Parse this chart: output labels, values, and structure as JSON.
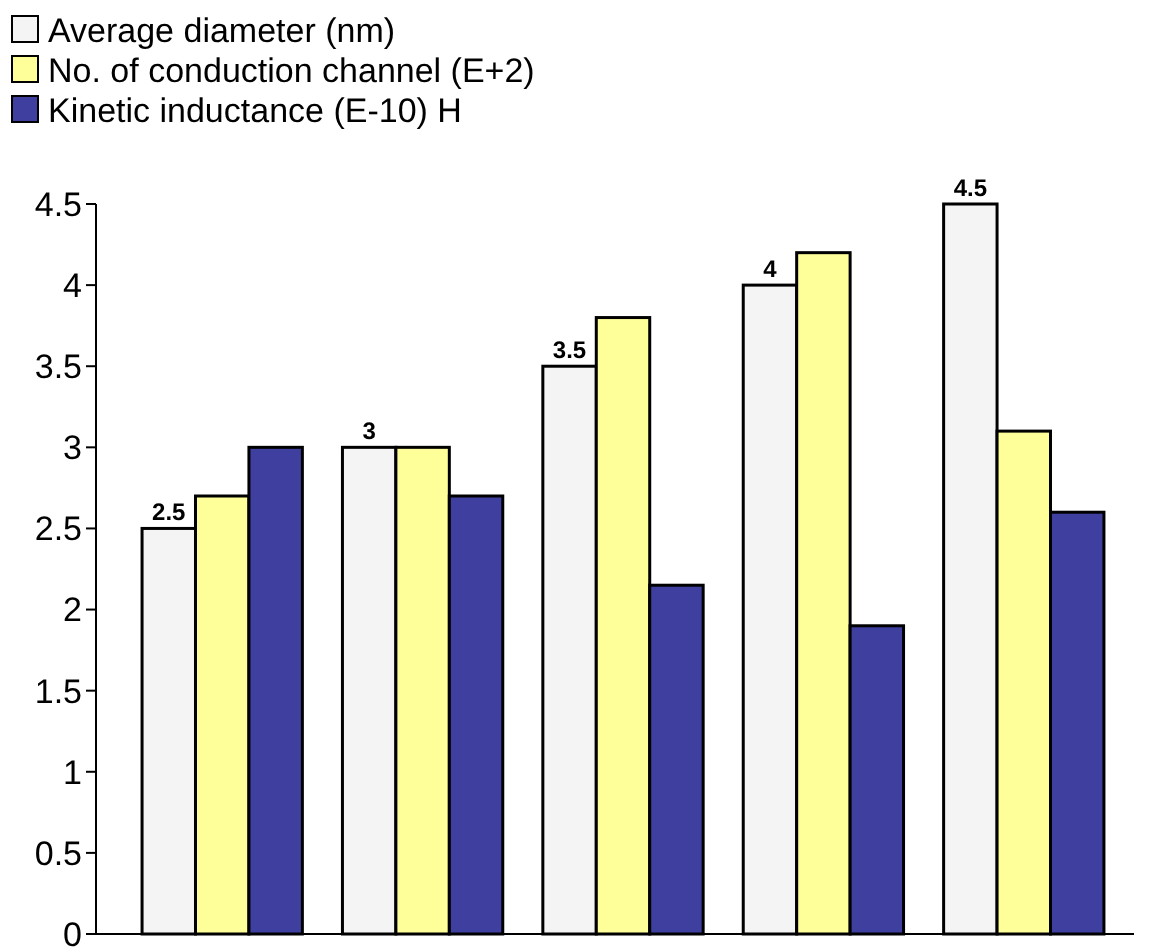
{
  "chart_data": {
    "type": "bar",
    "categories": [
      null,
      null,
      null,
      null,
      null
    ],
    "series": [
      {
        "name": "Average diameter (nm)",
        "color": "#f4f4f4",
        "values": [
          2.5,
          3,
          3.5,
          4,
          4.5
        ],
        "value_labels": [
          "2.5",
          "3",
          "3.5",
          "4",
          "4.5"
        ]
      },
      {
        "name": "No. of conduction channel (E+2)",
        "color": "#ffff99",
        "values": [
          2.7,
          3,
          3.8,
          4.2,
          3.1
        ]
      },
      {
        "name": "Kinetic inductance (E-10) H",
        "color": "#3f3f9f",
        "values": [
          3,
          2.7,
          2.15,
          1.9,
          2.6
        ]
      }
    ],
    "ylim": [
      0,
      4.5
    ],
    "yticks": [
      0,
      0.5,
      1,
      1.5,
      2,
      2.5,
      3,
      3.5,
      4,
      4.5
    ],
    "grid": false,
    "legend": "top left"
  }
}
